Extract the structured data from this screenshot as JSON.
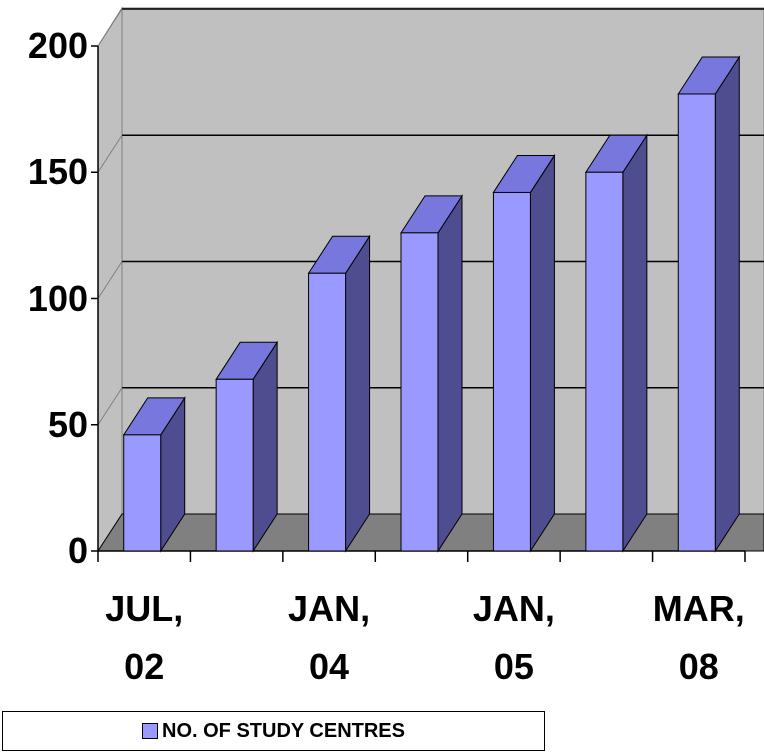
{
  "chart_data": {
    "type": "bar3d",
    "categories": [
      "JUL, 02",
      null,
      "JAN, 04",
      null,
      "JAN, 05",
      null,
      "MAR, 08"
    ],
    "series": [
      {
        "name": "NO. OF STUDY CENTRES",
        "color": "#9999ff",
        "values": [
          46,
          68,
          110,
          126,
          142,
          150,
          181
        ]
      }
    ],
    "ylim": [
      0,
      200
    ],
    "yticks": [
      0,
      50,
      100,
      150,
      200
    ],
    "grid": true,
    "legend": "bottom"
  }
}
